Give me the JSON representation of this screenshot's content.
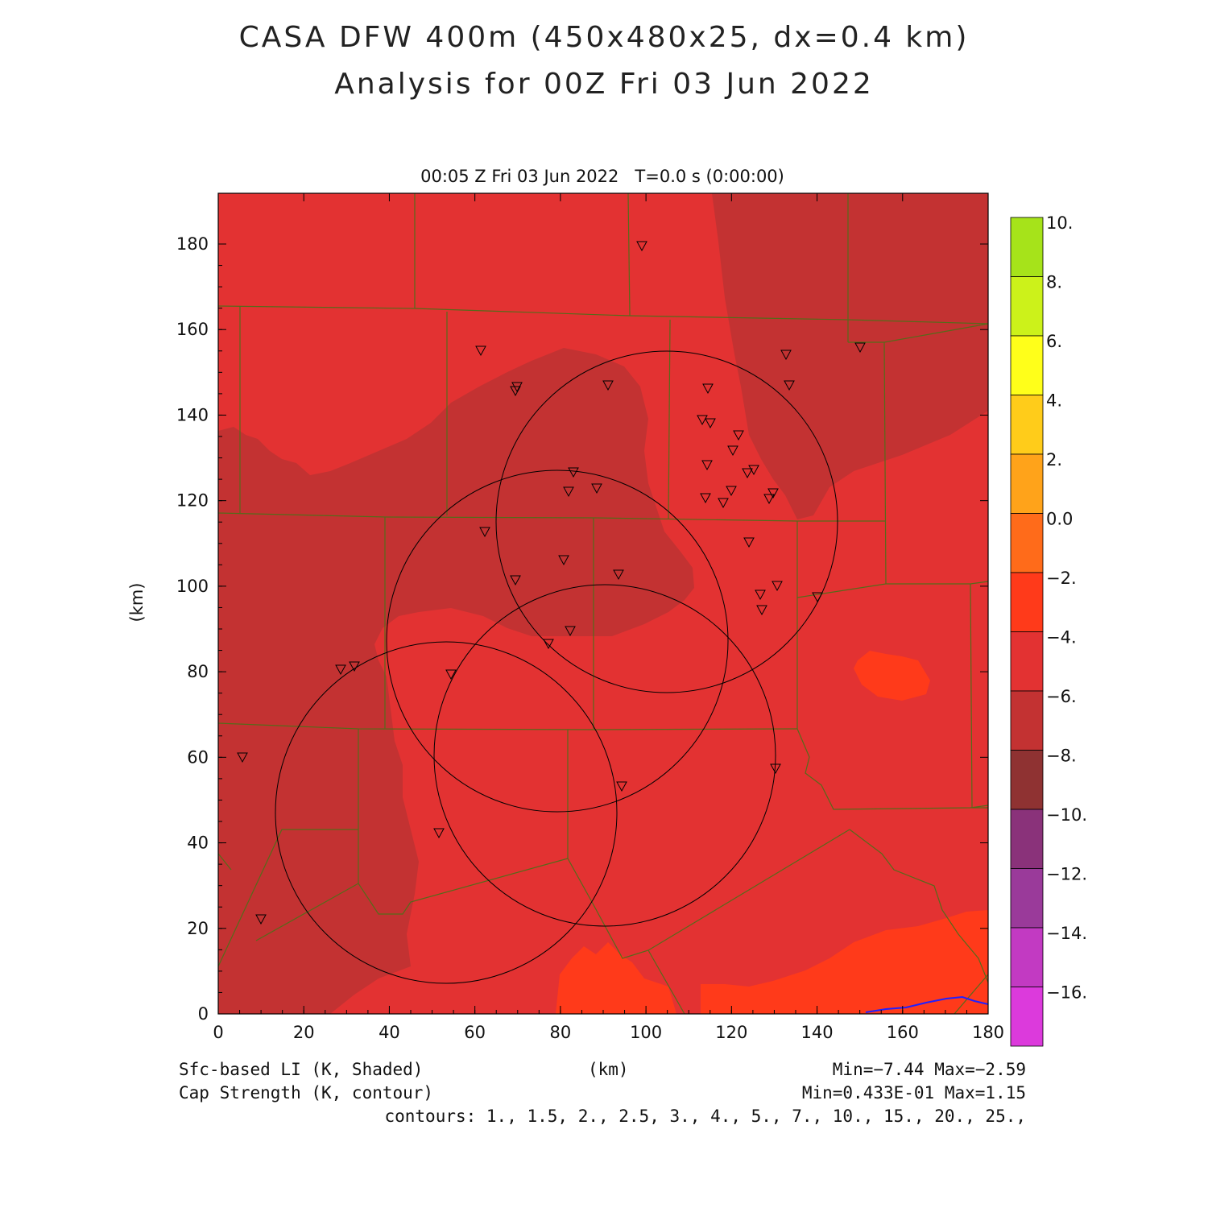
{
  "title_line1": "CASA DFW 400m (450x480x25, dx=0.4 km)",
  "title_line2": "Analysis for 00Z Fri 03 Jun 2022",
  "subtitle": "00:05 Z Fri 03 Jun 2022   T=0.0 s (0:00:00)",
  "x_axis": {
    "label": "(km)",
    "ticks": [
      "0",
      "20",
      "40",
      "60",
      "80",
      "100",
      "120",
      "140",
      "160",
      "180"
    ]
  },
  "y_axis": {
    "label": "(km)",
    "ticks": [
      "0",
      "20",
      "40",
      "60",
      "80",
      "100",
      "120",
      "140",
      "160",
      "180"
    ]
  },
  "colorbar": {
    "labels": [
      "10.",
      "8.",
      "6.",
      "4.",
      "2.",
      "0.0",
      "−2.",
      "−4.",
      "−6.",
      "−8.",
      "−10.",
      "−12.",
      "−14.",
      "−16."
    ],
    "colors": [
      "#a6e31a",
      "#ccf21a",
      "#ffff1a",
      "#ffcc1a",
      "#ffa31a",
      "#ff6b1a",
      "#ff3a1a",
      "#e33232",
      "#c33232",
      "#8f3232",
      "#8a327a",
      "#9a3a9a",
      "#c23ac2",
      "#dc3adc"
    ]
  },
  "field_colors": {
    "li_4_6": "#e33232",
    "li_6_8": "#c33232",
    "li_2_4": "#ff3a1a",
    "county_lines": "#556b1a",
    "radar_rings": "#000000",
    "coast_line": "#2020ff"
  },
  "footer": {
    "left1": "Sfc-based LI (K, Shaded)",
    "left2": "Cap Strength (K, contour)",
    "center": "(km)",
    "right1": "Min=−7.44 Max=−2.59",
    "right2": "Min=0.433E-01 Max=1.15",
    "right3": "contours: 1., 1.5, 2., 2.5, 3., 4., 5., 7., 10., 15., 20., 25.,"
  }
}
